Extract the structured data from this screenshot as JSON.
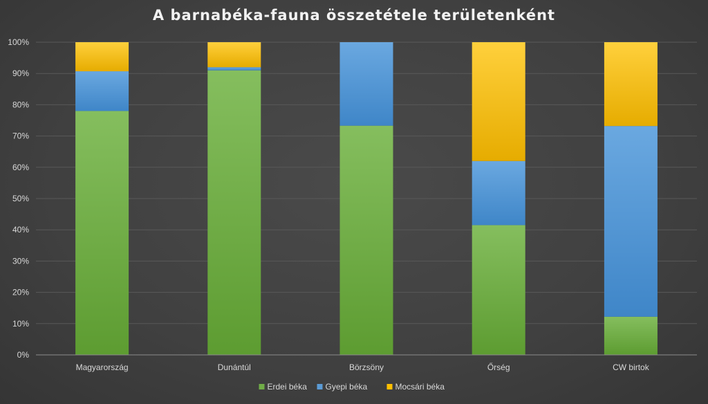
{
  "chart_data": {
    "type": "bar",
    "stacked": true,
    "percent": true,
    "title": "A barnabéka-fauna összetétele területenként",
    "categories": [
      "Magyarország",
      "Dunántúl",
      "Börzsöny",
      "Őrség",
      "CW birtok"
    ],
    "series": [
      {
        "name": "Erdei béka",
        "values": [
          78.0,
          91.0,
          73.3,
          41.5,
          12.2
        ],
        "color": "#70ad47"
      },
      {
        "name": "Gyepi béka",
        "values": [
          12.7,
          1.0,
          26.7,
          20.5,
          61.0
        ],
        "color": "#5b9bd5"
      },
      {
        "name": "Mocsári béka",
        "values": [
          9.3,
          8.0,
          0.0,
          38.0,
          26.8
        ],
        "color": "#ffc000"
      }
    ],
    "y_ticks": [
      "0%",
      "10%",
      "20%",
      "30%",
      "40%",
      "50%",
      "60%",
      "70%",
      "80%",
      "90%",
      "100%"
    ],
    "ylim": [
      0,
      100
    ],
    "grid": true,
    "legend_position": "bottom"
  }
}
